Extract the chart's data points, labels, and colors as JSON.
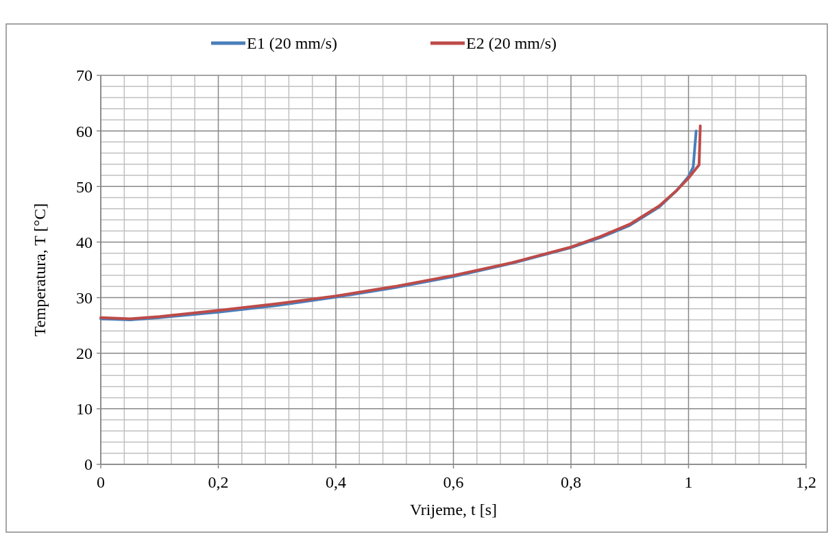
{
  "chart_data": {
    "type": "line",
    "xlabel": "Vrijeme, t [s]",
    "ylabel": "Temperatura, T [°C]",
    "xlim": [
      0,
      1.2
    ],
    "xticks": [
      {
        "value": 0,
        "label": "0"
      },
      {
        "value": 0.2,
        "label": "0,2"
      },
      {
        "value": 0.4,
        "label": "0,4"
      },
      {
        "value": 0.6,
        "label": "0,6"
      },
      {
        "value": 0.8,
        "label": "0,8"
      },
      {
        "value": 1,
        "label": "1"
      },
      {
        "value": 1.2,
        "label": "1,2"
      }
    ],
    "ylim": [
      0,
      70
    ],
    "yticks": [
      0,
      10,
      20,
      30,
      40,
      50,
      60,
      70
    ],
    "grid": true,
    "legend": "top",
    "marker": "none",
    "line_style": "solid",
    "series": [
      {
        "name": "E1 (20 mm/s)",
        "color": "#4a7ebb",
        "x": [
          0,
          0.05,
          0.1,
          0.2,
          0.3,
          0.4,
          0.5,
          0.6,
          0.7,
          0.8,
          0.85,
          0.9,
          0.95,
          0.98,
          1.0,
          1.008,
          1.013
        ],
        "values": [
          26.2,
          26.0,
          26.4,
          27.4,
          28.6,
          30.1,
          31.8,
          33.8,
          36.2,
          39.0,
          40.8,
          43.0,
          46.3,
          49.3,
          51.8,
          53.5,
          60.0
        ]
      },
      {
        "name": "E2 (20 mm/s)",
        "color": "#be4b48",
        "x": [
          0,
          0.05,
          0.1,
          0.2,
          0.3,
          0.4,
          0.5,
          0.6,
          0.7,
          0.8,
          0.85,
          0.9,
          0.95,
          0.98,
          1.0,
          1.018,
          1.02
        ],
        "values": [
          26.4,
          26.2,
          26.6,
          27.7,
          28.9,
          30.3,
          32.0,
          34.0,
          36.3,
          39.1,
          41.0,
          43.2,
          46.5,
          49.3,
          51.5,
          53.9,
          60.9
        ]
      }
    ]
  }
}
